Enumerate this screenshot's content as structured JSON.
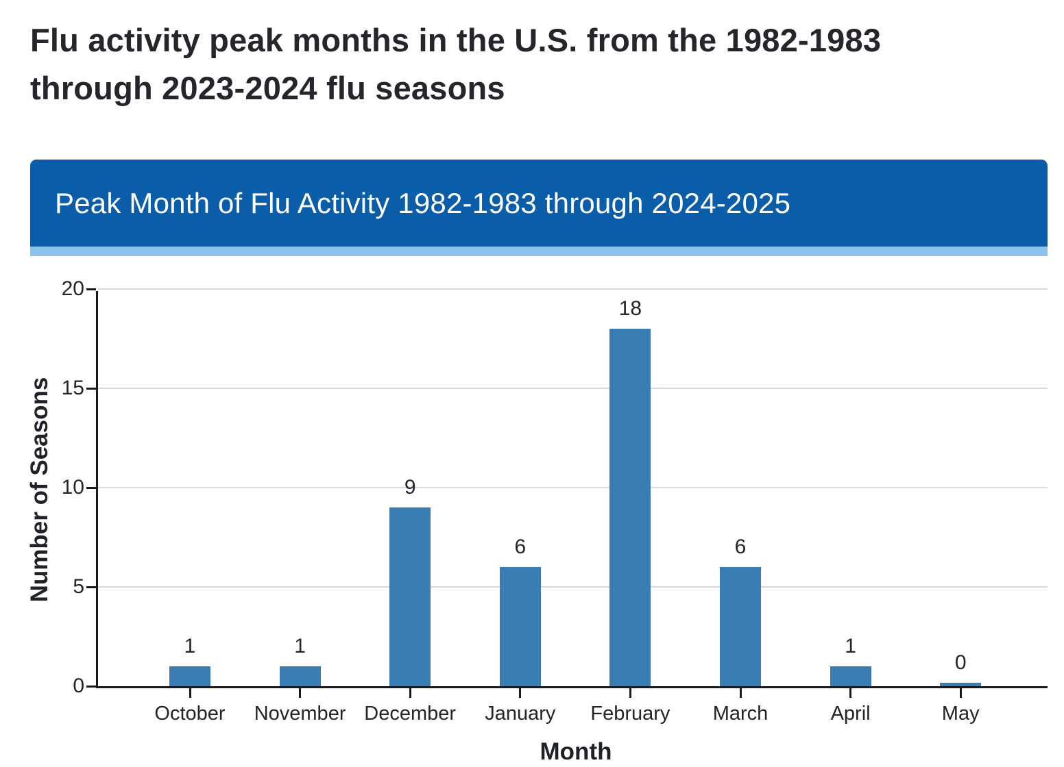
{
  "page": {
    "title": "Flu activity peak months in the U.S. from the 1982-1983 through 2023-2024 flu seasons"
  },
  "banner": {
    "title": "Peak Month of Flu Activity 1982-1983 through 2024-2025",
    "bg_color": "#0a5ea9",
    "accent_strip_color": "#8cc3ea",
    "text_color": "#ffffff"
  },
  "chart_data": {
    "type": "bar",
    "title": "Peak Month of Flu Activity 1982-1983 through 2024-2025",
    "categories": [
      "October",
      "November",
      "December",
      "January",
      "February",
      "March",
      "April",
      "May"
    ],
    "values": [
      1,
      1,
      9,
      6,
      18,
      6,
      1,
      0
    ],
    "xlabel": "Month",
    "ylabel": "Number of Seasons",
    "ylim": [
      0,
      20
    ],
    "yticks": [
      0,
      5,
      10,
      15,
      20
    ],
    "bar_color": "#3a7db5",
    "gridline_color": "#d9d9d9",
    "grid": true,
    "data_labels": true,
    "legend": "none"
  }
}
